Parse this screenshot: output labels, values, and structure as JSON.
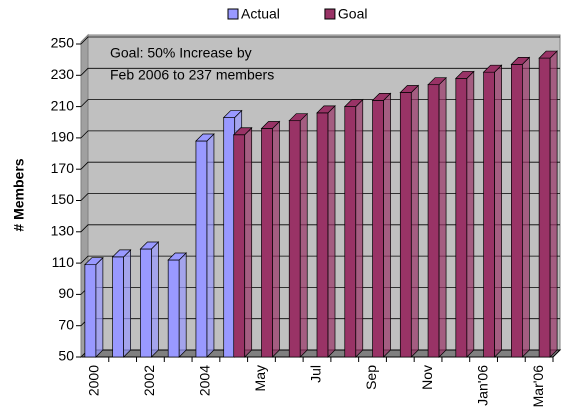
{
  "chart_data": {
    "type": "bar",
    "y_label": "# Members",
    "annotation": [
      "Goal: 50% Increase by",
      "Feb 2006 to 237 members"
    ],
    "categories": [
      "2000",
      null,
      "2002",
      null,
      "2004",
      null,
      "May",
      null,
      "Jul",
      null,
      "Sep",
      null,
      "Nov",
      null,
      "Jan'06",
      null,
      "Mar'06"
    ],
    "series": [
      {
        "name": "Actual",
        "color": "#9999ff",
        "values": [
          109,
          114,
          119,
          112,
          188,
          203,
          null,
          null,
          null,
          null,
          null,
          null,
          null,
          null,
          null,
          null,
          null
        ]
      },
      {
        "name": "Goal",
        "color": "#993366",
        "values": [
          null,
          null,
          null,
          null,
          null,
          192,
          196,
          201,
          206,
          210,
          214,
          219,
          224,
          228,
          232,
          237,
          241
        ]
      }
    ],
    "ylim": [
      50,
      250
    ],
    "yticks": [
      50,
      70,
      90,
      110,
      130,
      150,
      170,
      190,
      210,
      230,
      250
    ],
    "grid": true,
    "legend": "top"
  }
}
